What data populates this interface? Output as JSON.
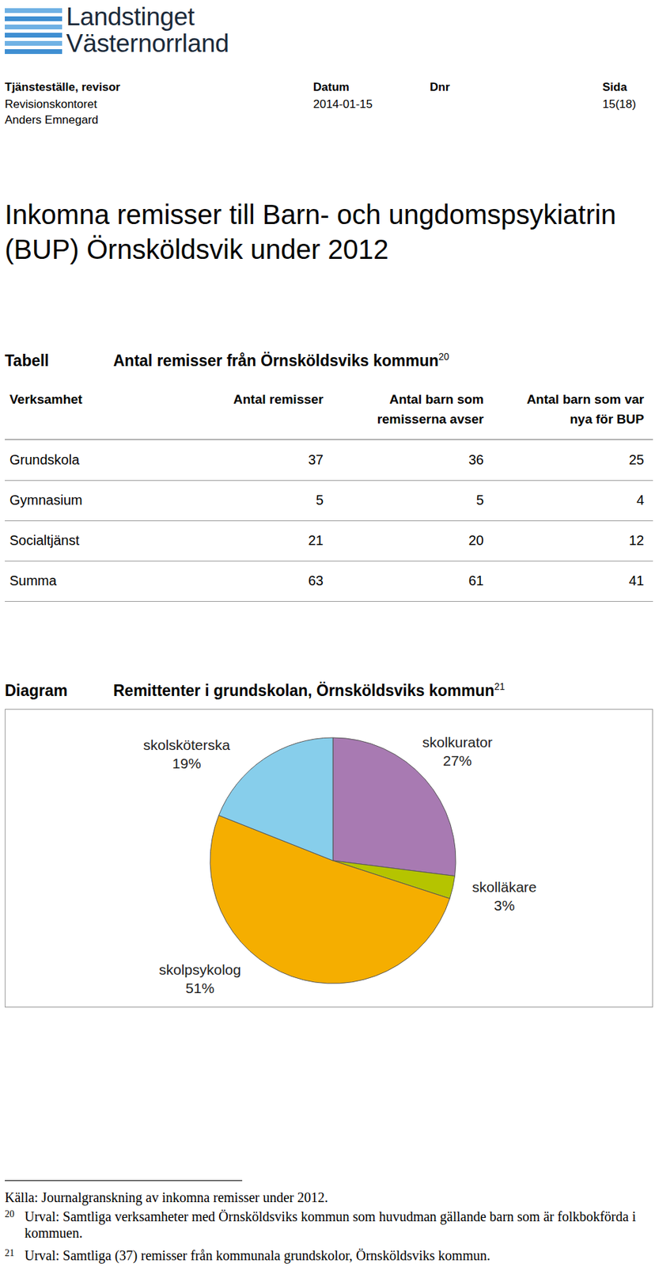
{
  "header": {
    "logo": [
      "Landstinget",
      "Västernorrland"
    ],
    "fields": [
      {
        "label": "Tjänsteställe, revisor",
        "values": [
          "Revisionskontoret",
          "Anders Emnegard"
        ]
      },
      {
        "label": "Datum",
        "values": [
          "2014-01-15"
        ]
      },
      {
        "label": "Dnr",
        "values": []
      },
      {
        "label": "Sida",
        "values": [
          "15(18)"
        ]
      }
    ]
  },
  "title": [
    "Inkomna remisser till Barn- och ungdomspsykiatrin",
    "(BUP) Örnsköldsvik under 2012"
  ],
  "table": {
    "label": "Tabell",
    "title": "Antal remisser från Örnsköldsviks kommun",
    "note_ref": "20",
    "columns": [
      [
        "Verksamhet"
      ],
      [
        "Antal remisser"
      ],
      [
        "Antal barn som",
        "remisserna avser"
      ],
      [
        "Antal barn som var",
        "nya för BUP"
      ]
    ],
    "rows": [
      [
        "Grundskola",
        37,
        36,
        25
      ],
      [
        "Gymnasium",
        5,
        5,
        4
      ],
      [
        "Socialtjänst",
        21,
        20,
        12
      ],
      [
        "Summa",
        63,
        61,
        41
      ]
    ]
  },
  "diagram": {
    "label": "Diagram",
    "title": "Remittenter i grundskolan, Örnsköldsviks kommun",
    "note_ref": "21"
  },
  "chart_data": {
    "type": "pie",
    "categories": [
      "skolkurator",
      "skolläkare",
      "skolpsykolog",
      "skolsköterska"
    ],
    "values": [
      27,
      3,
      51,
      19
    ],
    "value_labels": [
      "27%",
      "3%",
      "51%",
      "19%"
    ],
    "colors": [
      "#a87ab2",
      "#b5c400",
      "#f5ae00",
      "#87ceeb"
    ],
    "data_labels": true
  },
  "footnotes": {
    "source": "Källa: Journalgranskning av inkomna remisser under 2012.",
    "notes": [
      {
        "ref": "20",
        "text": "Urval: Samtliga verksamheter med Örnsköldsviks kommun som huvudman gällande barn som är folkbokförda i kommuen."
      },
      {
        "ref": "21",
        "text": "Urval: Samtliga (37) remisser från kommunala grundskolor, Örnsköldsviks kommun."
      }
    ]
  }
}
